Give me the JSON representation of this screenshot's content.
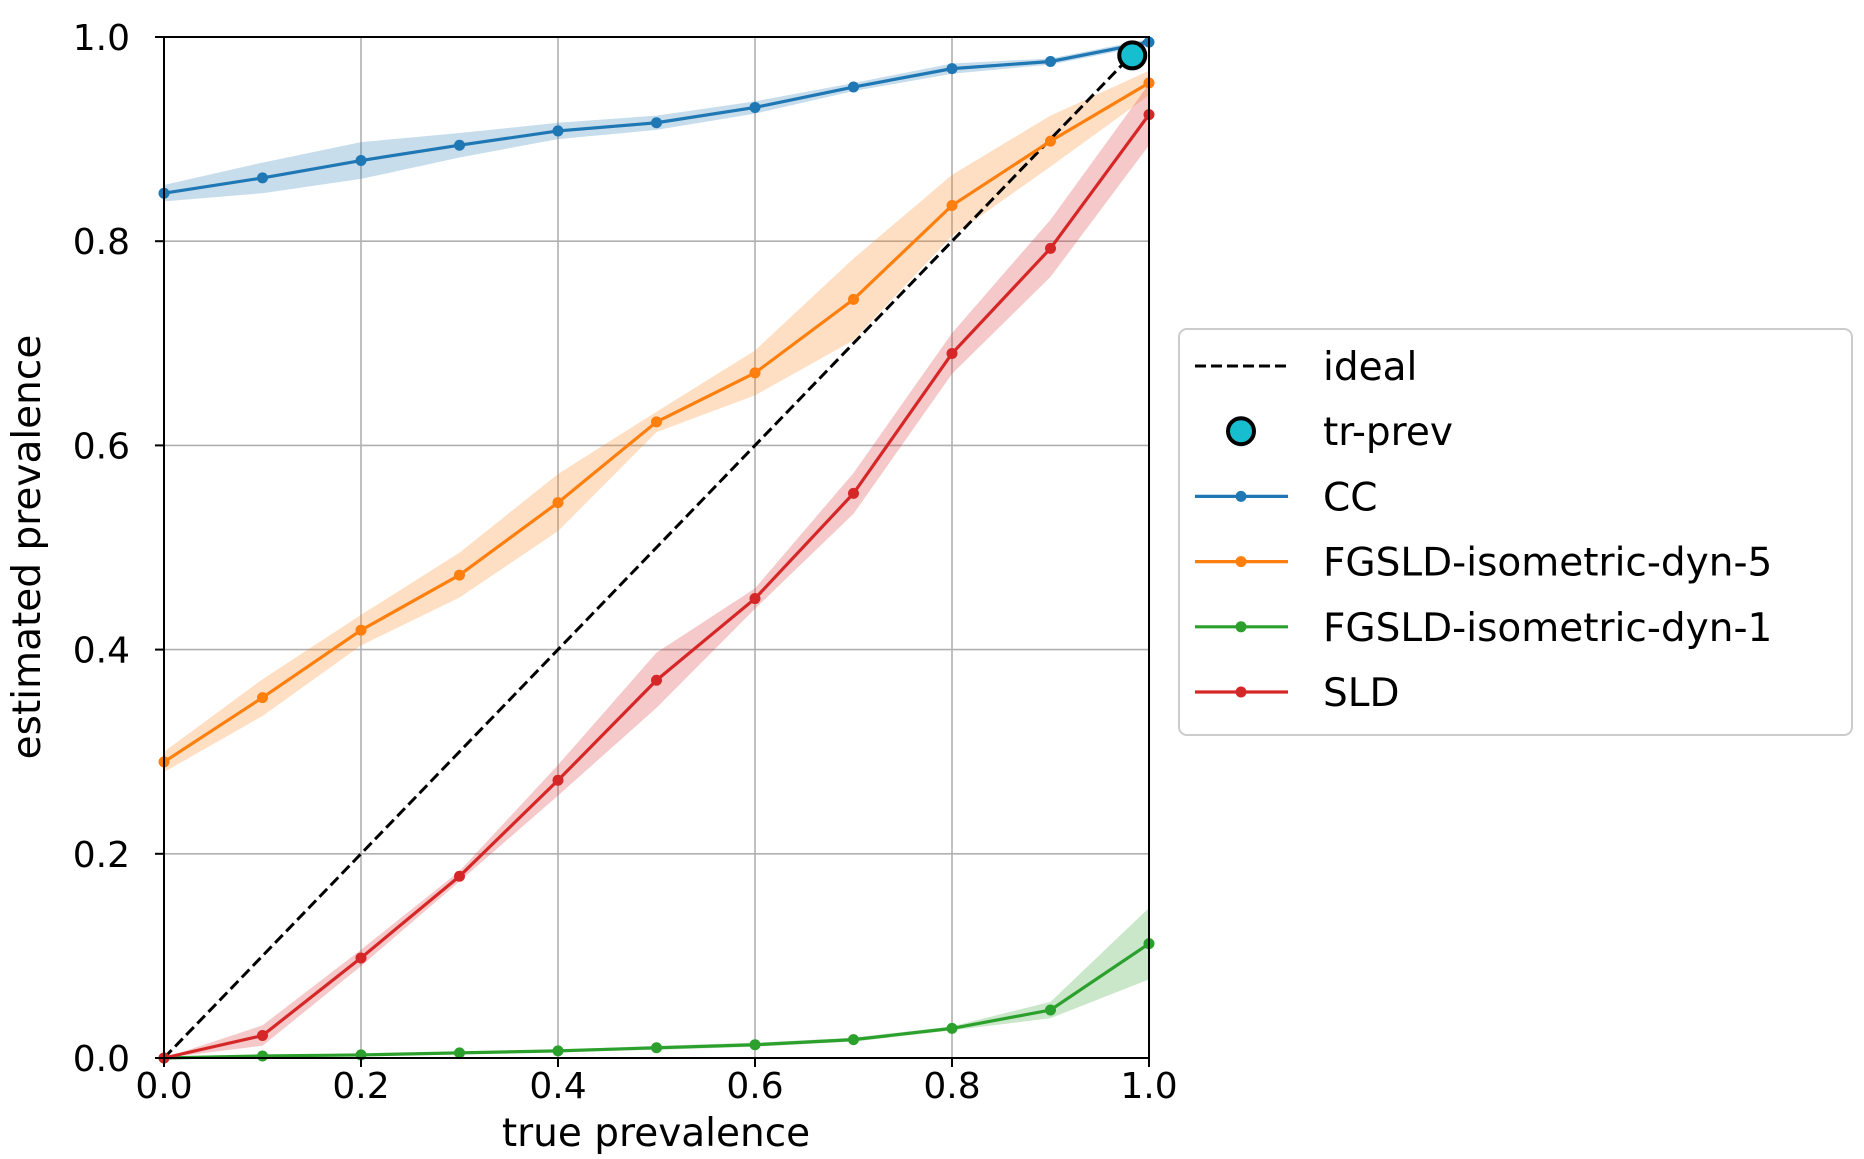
{
  "chart_data": {
    "type": "line",
    "xlabel": "true prevalence",
    "ylabel": "estimated prevalence",
    "xlim": [
      0,
      1
    ],
    "ylim": [
      0,
      1
    ],
    "grid": true,
    "xticks": [
      "0.0",
      "0.2",
      "0.4",
      "0.6",
      "0.8",
      "1.0"
    ],
    "yticks": [
      "0.0",
      "0.2",
      "0.4",
      "0.6",
      "0.8",
      "1.0"
    ],
    "legend_position": "right",
    "x": [
      0,
      0.1,
      0.2,
      0.3,
      0.4,
      0.5,
      0.6,
      0.7,
      0.8,
      0.9,
      1.0
    ],
    "ideal": {
      "name": "ideal",
      "color": "#000000",
      "points": [
        [
          0,
          0
        ],
        [
          1,
          1
        ]
      ]
    },
    "tr_prev": {
      "name": "tr-prev",
      "color": "#17becf",
      "x": 0.983,
      "y": 0.982
    },
    "series": [
      {
        "name": "CC",
        "color": "#1f77b4",
        "values": [
          0.847,
          0.862,
          0.879,
          0.894,
          0.908,
          0.916,
          0.931,
          0.951,
          0.969,
          0.976,
          0.995
        ],
        "band": [
          0.008,
          0.015,
          0.018,
          0.012,
          0.008,
          0.007,
          0.006,
          0.004,
          0.005,
          0.003,
          0.003
        ]
      },
      {
        "name": "FGSLD-isometric-dyn-5",
        "color": "#ff7f0e",
        "values": [
          0.29,
          0.353,
          0.419,
          0.473,
          0.544,
          0.623,
          0.671,
          0.743,
          0.835,
          0.898,
          0.955
        ],
        "band": [
          0.01,
          0.018,
          0.015,
          0.022,
          0.028,
          0.01,
          0.022,
          0.04,
          0.03,
          0.025,
          0.012
        ]
      },
      {
        "name": "FGSLD-isometric-dyn-1",
        "color": "#2ca02c",
        "values": [
          0.0,
          0.002,
          0.003,
          0.005,
          0.007,
          0.01,
          0.013,
          0.018,
          0.029,
          0.047,
          0.112
        ],
        "band": [
          0,
          0.001,
          0.001,
          0.001,
          0.001,
          0.002,
          0.002,
          0.002,
          0.002,
          0.008,
          0.035
        ]
      },
      {
        "name": "SLD",
        "color": "#d62728",
        "values": [
          0.0,
          0.022,
          0.098,
          0.178,
          0.272,
          0.37,
          0.45,
          0.553,
          0.69,
          0.793,
          0.924
        ],
        "band": [
          0,
          0.01,
          0.008,
          0.005,
          0.015,
          0.027,
          0.01,
          0.02,
          0.02,
          0.028,
          0.03
        ]
      }
    ]
  }
}
